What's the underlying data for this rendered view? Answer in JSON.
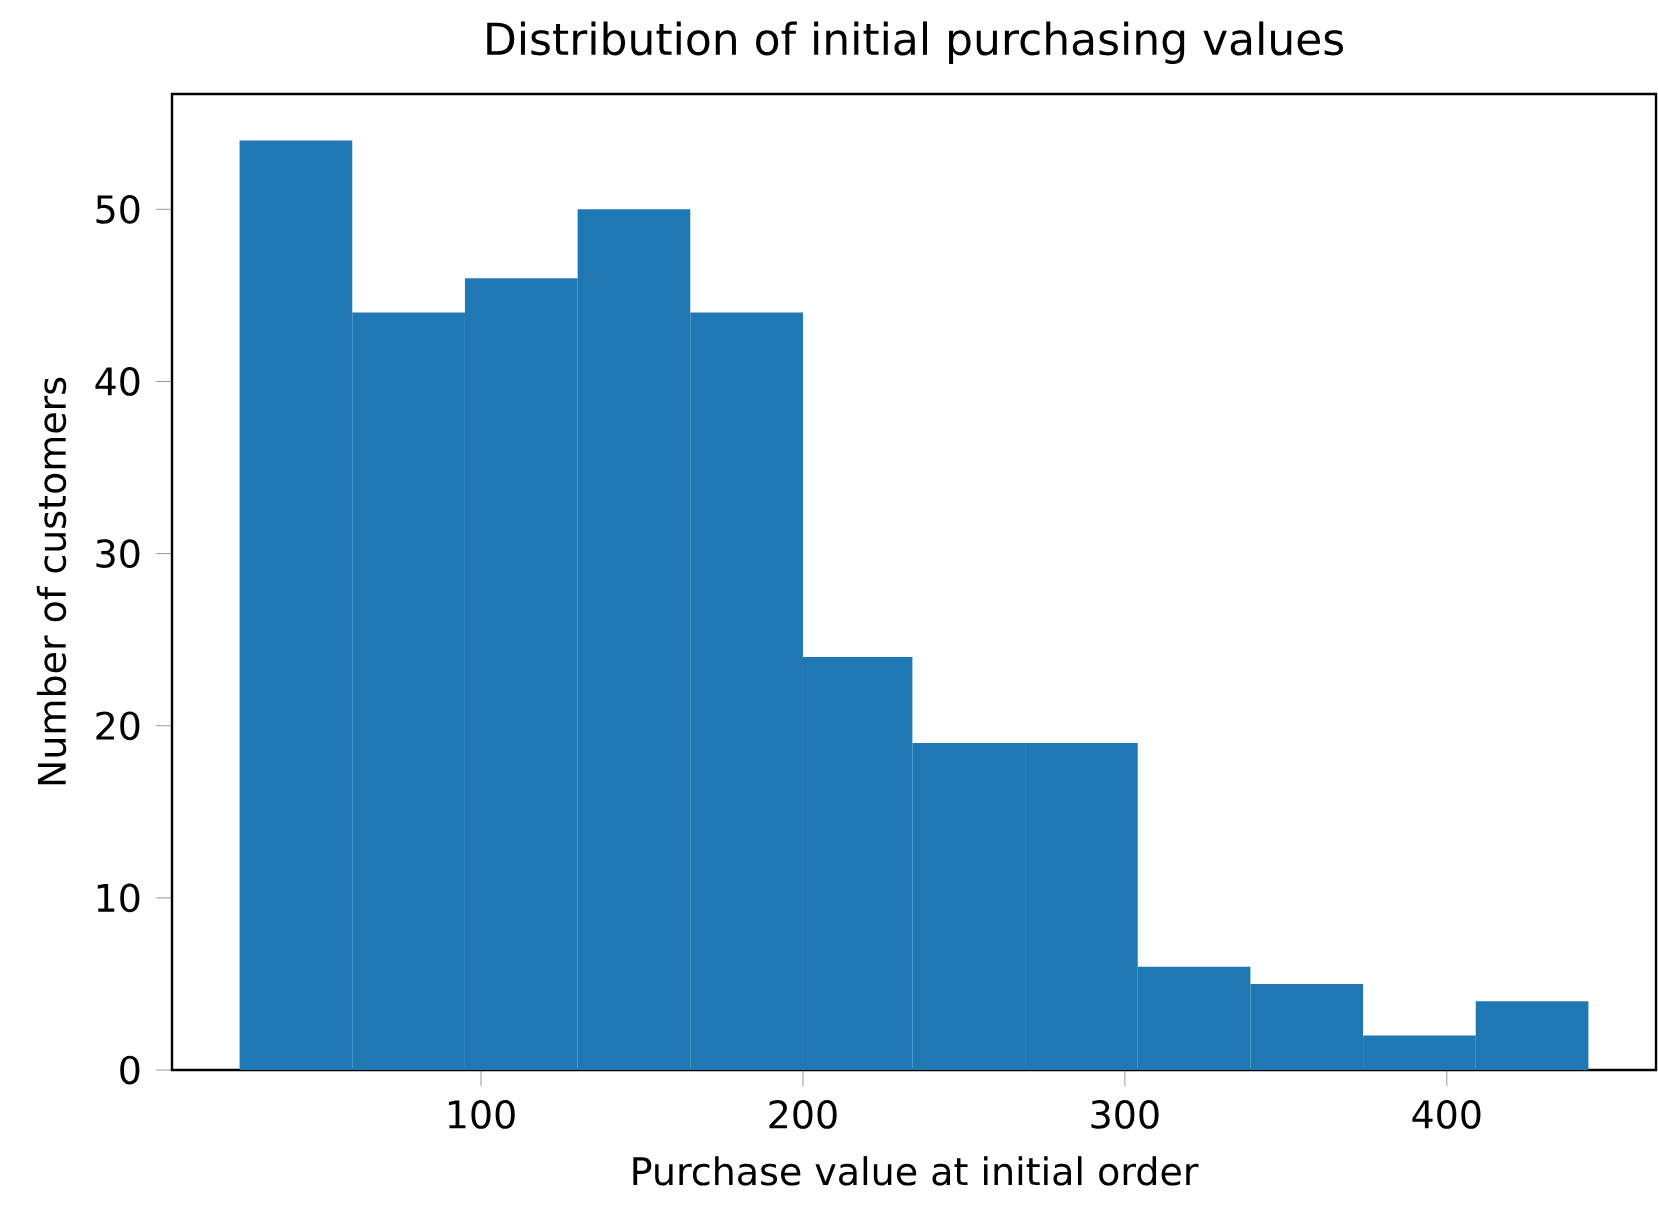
{
  "chart_data": {
    "type": "histogram",
    "title": "Distribution of initial purchasing values",
    "xlabel": "Purchase value at initial order",
    "ylabel": "Number of customers",
    "bins": [
      25,
      60,
      95,
      130,
      165,
      200,
      234,
      269,
      304,
      339,
      374,
      409,
      444
    ],
    "values": [
      54,
      44,
      46,
      50,
      44,
      24,
      19,
      19,
      6,
      5,
      2,
      4
    ],
    "color": "#1f77b4",
    "xlim": [
      4,
      465
    ],
    "ylim": [
      0,
      56.7
    ],
    "xticks": [
      100,
      200,
      300,
      400
    ],
    "yticks": [
      0,
      10,
      20,
      30,
      40,
      50
    ],
    "grid": false
  }
}
